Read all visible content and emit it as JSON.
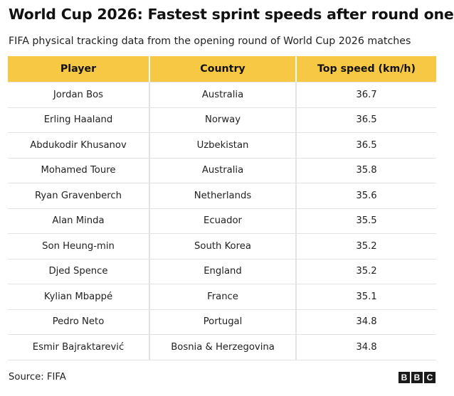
{
  "chart_data": {
    "type": "table",
    "title": "World Cup 2026: Fastest sprint speeds after round one",
    "subtitle": "FIFA physical tracking data from the opening round of World Cup 2026 matches",
    "columns": [
      "Player",
      "Country",
      "Top speed (km/h)"
    ],
    "rows": [
      [
        "Jordan Bos",
        "Australia",
        "36.7"
      ],
      [
        "Erling Haaland",
        "Norway",
        "36.5"
      ],
      [
        "Abdukodir Khusanov",
        "Uzbekistan",
        "36.5"
      ],
      [
        "Mohamed Toure",
        "Australia",
        "35.8"
      ],
      [
        "Ryan Gravenberch",
        "Netherlands",
        "35.6"
      ],
      [
        "Alan Minda",
        "Ecuador",
        "35.5"
      ],
      [
        "Son Heung-min",
        "South Korea",
        "35.2"
      ],
      [
        "Djed Spence",
        "England",
        "35.2"
      ],
      [
        "Kylian Mbappé",
        "France",
        "35.1"
      ],
      [
        "Pedro Neto",
        "Portugal",
        "34.8"
      ],
      [
        "Esmir Bajraktarević",
        "Bosnia & Herzegovina",
        "34.8"
      ]
    ],
    "source": "Source: FIFA"
  },
  "logo": [
    "B",
    "B",
    "C"
  ],
  "colors": {
    "header_background": "#f7c843",
    "row_divider": "#e3e3e3",
    "logo_background": "#1a1a1a"
  }
}
